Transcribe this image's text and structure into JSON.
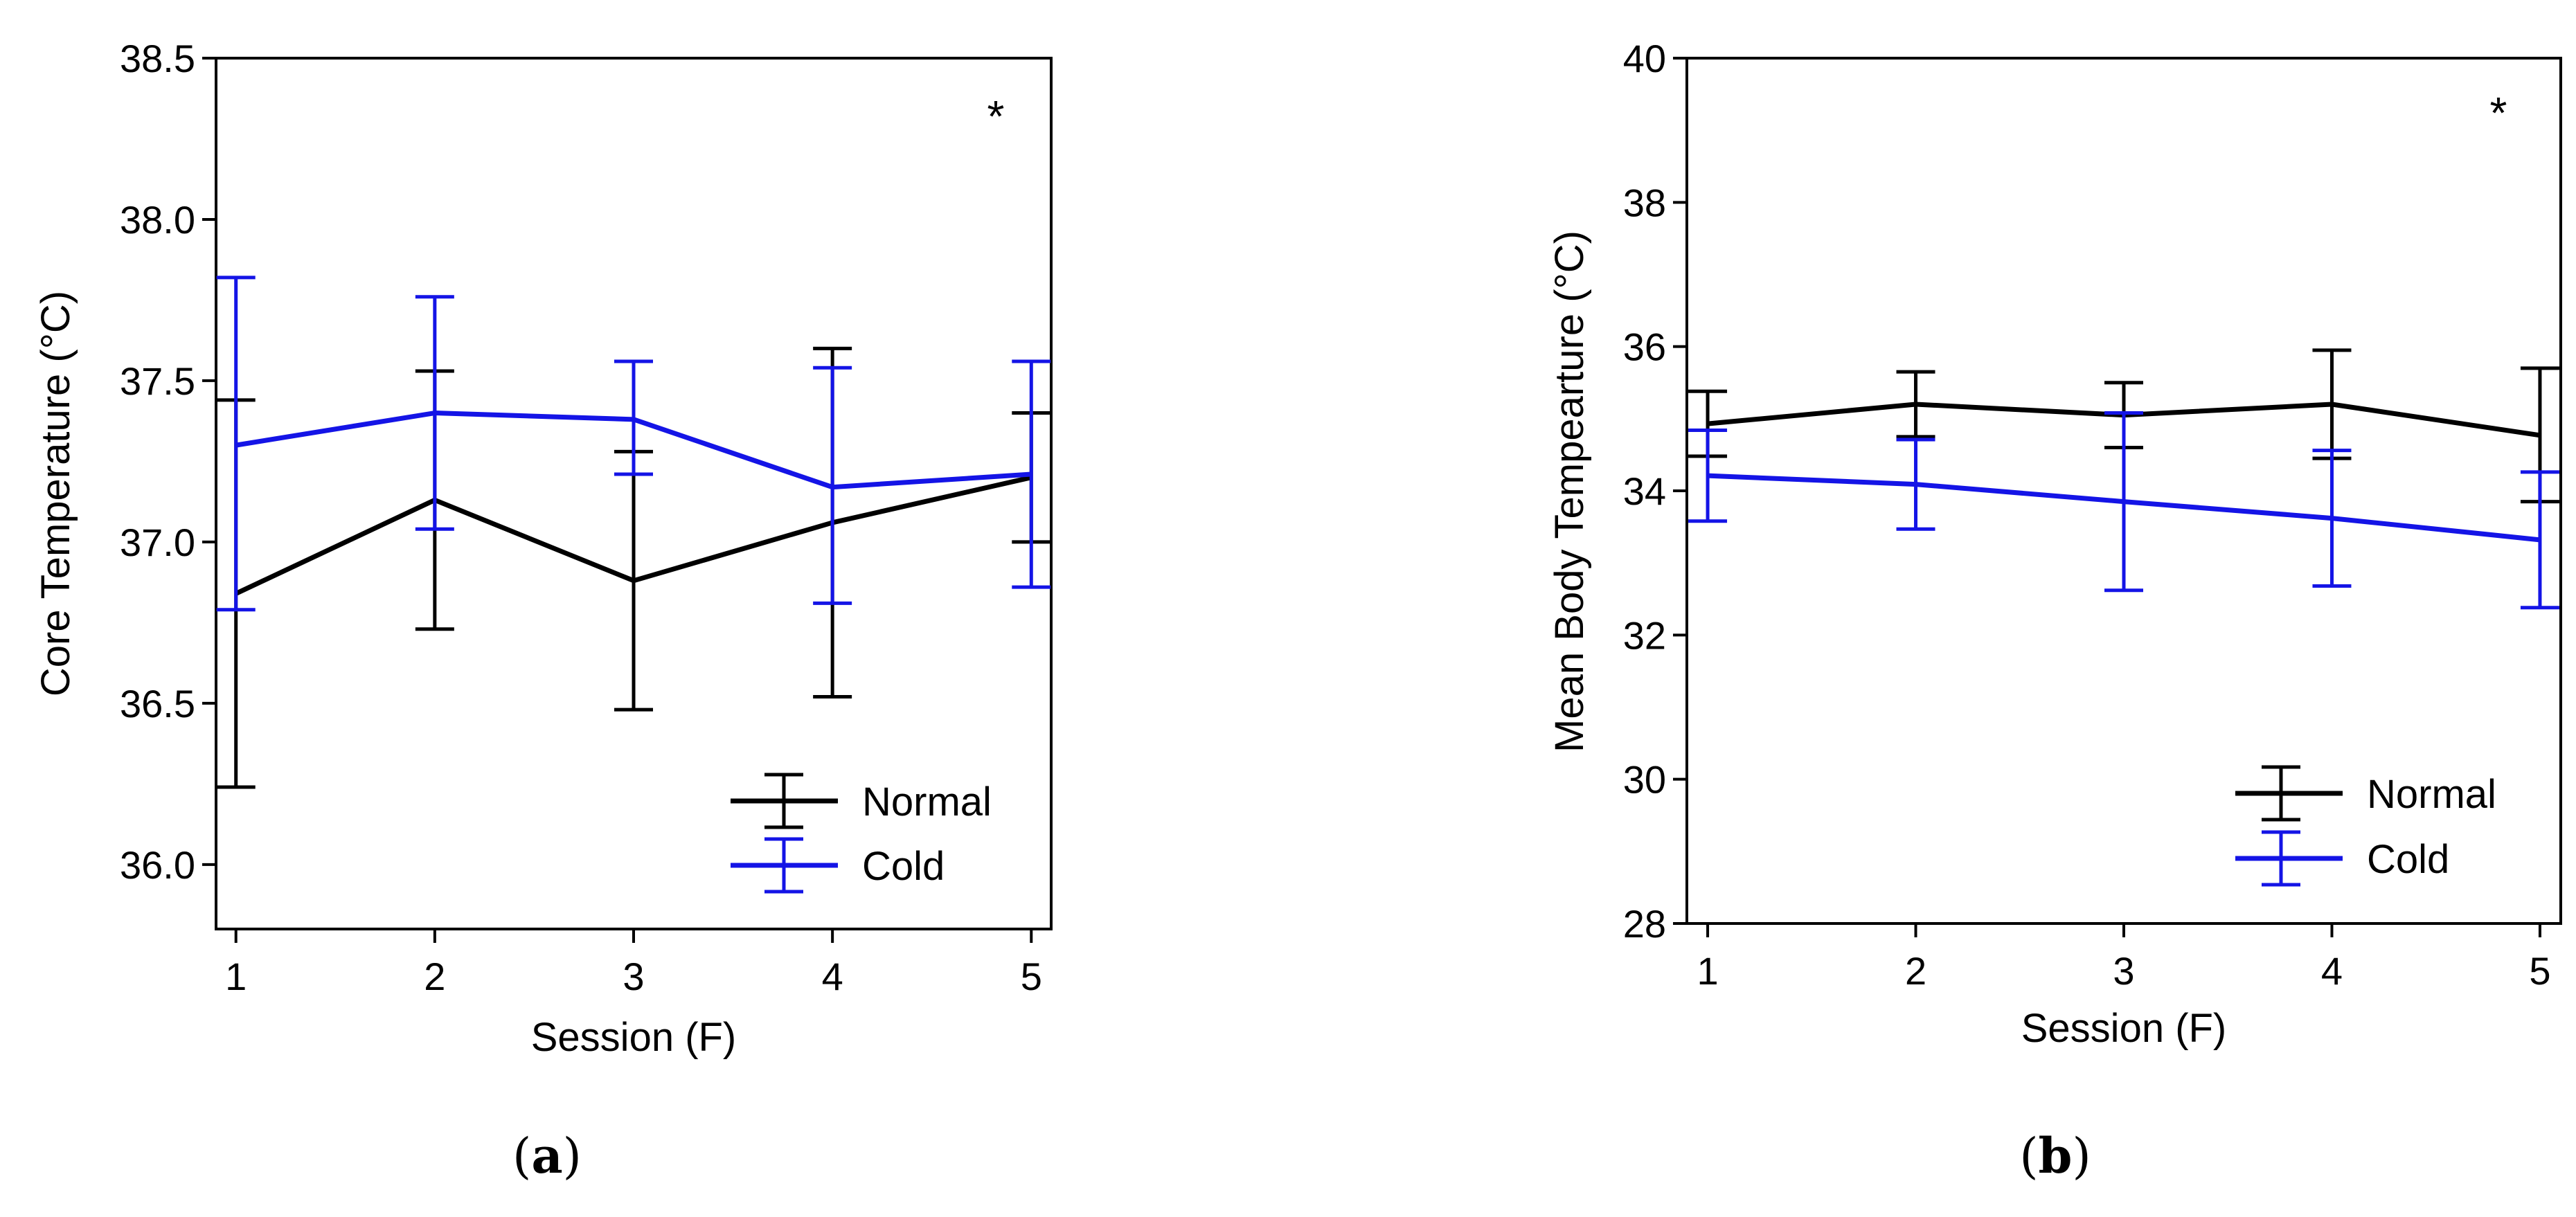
{
  "chart_data": [
    {
      "type": "line",
      "panel_label": "a",
      "xlabel": "Session (F)",
      "ylabel": "Core Temperature (°C)",
      "ylim": [
        35.8,
        38.5
      ],
      "yticks": [
        36.0,
        36.5,
        37.0,
        37.5,
        38.0,
        38.5
      ],
      "ytick_labels": [
        "36.0",
        "36.5",
        "37.0",
        "37.5",
        "38.0",
        "38.5"
      ],
      "xlim": [
        0.9,
        5.1
      ],
      "x": [
        1,
        2,
        3,
        4,
        5
      ],
      "xtick_labels": [
        "1",
        "2",
        "3",
        "4",
        "5"
      ],
      "annotation": "*",
      "legend_position": "lower-right",
      "series": [
        {
          "name": "Normal",
          "color": "#000000",
          "values": [
            36.84,
            37.13,
            36.88,
            37.06,
            37.2
          ],
          "err_low": [
            36.24,
            36.73,
            36.48,
            36.52,
            37.0
          ],
          "err_high": [
            37.44,
            37.53,
            37.28,
            37.6,
            37.4
          ]
        },
        {
          "name": "Cold",
          "color": "#1414e6",
          "values": [
            37.3,
            37.4,
            37.38,
            37.17,
            37.21
          ],
          "err_low": [
            36.79,
            37.04,
            37.21,
            36.81,
            36.86
          ],
          "err_high": [
            37.82,
            37.76,
            37.56,
            37.54,
            37.56
          ]
        }
      ]
    },
    {
      "type": "line",
      "panel_label": "b",
      "xlabel": "Session (F)",
      "ylabel": "Mean Body Tempearture (°C)",
      "ylim": [
        28,
        40
      ],
      "yticks": [
        28,
        30,
        32,
        34,
        36,
        38,
        40
      ],
      "ytick_labels": [
        "28",
        "30",
        "32",
        "34",
        "36",
        "38",
        "40"
      ],
      "xlim": [
        0.9,
        5.1
      ],
      "x": [
        1,
        2,
        3,
        4,
        5
      ],
      "xtick_labels": [
        "1",
        "2",
        "3",
        "4",
        "5"
      ],
      "annotation": "*",
      "legend_position": "lower-right",
      "series": [
        {
          "name": "Normal",
          "color": "#000000",
          "values": [
            34.93,
            35.2,
            35.05,
            35.2,
            34.77
          ],
          "err_low": [
            34.48,
            34.75,
            34.6,
            34.45,
            33.85
          ],
          "err_high": [
            35.38,
            35.65,
            35.5,
            35.95,
            35.7
          ]
        },
        {
          "name": "Cold",
          "color": "#1414e6",
          "values": [
            34.21,
            34.09,
            33.85,
            33.62,
            33.32
          ],
          "err_low": [
            33.58,
            33.47,
            32.62,
            32.68,
            32.38
          ],
          "err_high": [
            34.84,
            34.71,
            35.08,
            34.56,
            34.26
          ]
        }
      ]
    }
  ]
}
